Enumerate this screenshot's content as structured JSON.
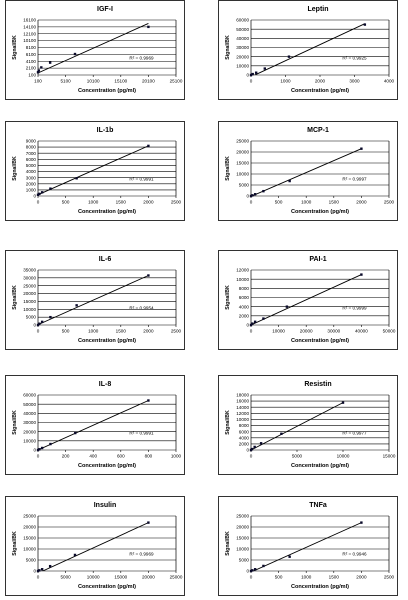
{
  "chart_data": [
    {
      "type": "scatter",
      "title": "IGF-I",
      "xlabel": "Concentration (pg/ml)",
      "ylabel": "Signal/BK",
      "xlim": [
        100,
        25100
      ],
      "ylim": [
        100,
        16100
      ],
      "xticks": [
        "100",
        "5100",
        "10100",
        "15100",
        "20100",
        "25100"
      ],
      "yticks": [
        "100",
        "2100",
        "4100",
        "6100",
        "8100",
        "10100",
        "12100",
        "14100",
        "16100"
      ],
      "points": [
        [
          100,
          900
        ],
        [
          250,
          1400
        ],
        [
          700,
          2300
        ],
        [
          2300,
          3700
        ],
        [
          6800,
          6200
        ],
        [
          20100,
          14100
        ]
      ],
      "fit": [
        [
          100,
          700
        ],
        [
          20100,
          15100
        ]
      ],
      "r2": "R² = 0.9969"
    },
    {
      "type": "scatter",
      "title": "Leptin",
      "xlabel": "Concentration (pg/ml)",
      "ylabel": "Signal/BK",
      "xlim": [
        0,
        4000
      ],
      "ylim": [
        0,
        60000
      ],
      "xticks": [
        "0",
        "1000",
        "2000",
        "3000",
        "4000"
      ],
      "yticks": [
        "0",
        "10000",
        "20000",
        "30000",
        "40000",
        "50000",
        "60000"
      ],
      "points": [
        [
          0,
          0
        ],
        [
          50,
          1000
        ],
        [
          150,
          2500
        ],
        [
          400,
          7000
        ],
        [
          1100,
          20000
        ],
        [
          3300,
          55000
        ]
      ],
      "fit": [
        [
          0,
          -2000
        ],
        [
          3300,
          56000
        ]
      ],
      "r2": "R² = 0.9925"
    },
    {
      "type": "scatter",
      "title": "IL-1b",
      "xlabel": "Concentration (pg/ml)",
      "ylabel": "Signal/BK",
      "xlim": [
        0,
        2500
      ],
      "ylim": [
        0,
        9000
      ],
      "xticks": [
        "0",
        "500",
        "1000",
        "1500",
        "2000",
        "2500"
      ],
      "yticks": [
        "0",
        "1000",
        "2000",
        "3000",
        "4000",
        "5000",
        "6000",
        "7000",
        "8000",
        "9000"
      ],
      "points": [
        [
          0,
          200
        ],
        [
          25,
          350
        ],
        [
          75,
          600
        ],
        [
          225,
          1200
        ],
        [
          700,
          2900
        ],
        [
          2000,
          8200
        ]
      ],
      "fit": [
        [
          0,
          200
        ],
        [
          2000,
          8200
        ]
      ],
      "r2": "R² = 0.9991"
    },
    {
      "type": "scatter",
      "title": "MCP-1",
      "xlabel": "Concentration (pg/ml)",
      "ylabel": "Signal/BK",
      "xlim": [
        0,
        2500
      ],
      "ylim": [
        0,
        25000
      ],
      "xticks": [
        "0",
        "500",
        "1000",
        "1500",
        "2000",
        "2500"
      ],
      "yticks": [
        "0",
        "5000",
        "10000",
        "15000",
        "20000",
        "25000"
      ],
      "points": [
        [
          0,
          0
        ],
        [
          25,
          300
        ],
        [
          75,
          800
        ],
        [
          225,
          2200
        ],
        [
          700,
          6800
        ],
        [
          2000,
          21500
        ]
      ],
      "fit": [
        [
          0,
          -200
        ],
        [
          2000,
          21500
        ]
      ],
      "r2": "R² = 0.9997"
    },
    {
      "type": "scatter",
      "title": "IL-6",
      "xlabel": "Concentration (pg/ml)",
      "ylabel": "Signal/BK",
      "xlim": [
        0,
        2500
      ],
      "ylim": [
        0,
        35000
      ],
      "xticks": [
        "0",
        "500",
        "1000",
        "1500",
        "2000",
        "2500"
      ],
      "yticks": [
        "0",
        "5000",
        "10000",
        "15000",
        "20000",
        "25000",
        "30000",
        "35000"
      ],
      "points": [
        [
          0,
          0
        ],
        [
          25,
          800
        ],
        [
          75,
          2000
        ],
        [
          225,
          5000
        ],
        [
          700,
          12500
        ],
        [
          2000,
          31500
        ]
      ],
      "fit": [
        [
          0,
          200
        ],
        [
          2000,
          31500
        ]
      ],
      "r2": "R² = 0.9954"
    },
    {
      "type": "scatter",
      "title": "PAI-1",
      "xlabel": "Concentration (pg/ml)",
      "ylabel": "Signal/BK",
      "xlim": [
        0,
        50000
      ],
      "ylim": [
        0,
        12000
      ],
      "xticks": [
        "0",
        "10000",
        "20000",
        "30000",
        "40000",
        "50000"
      ],
      "yticks": [
        "0",
        "2000",
        "4000",
        "6000",
        "8000",
        "10000",
        "12000"
      ],
      "points": [
        [
          0,
          0
        ],
        [
          500,
          300
        ],
        [
          1500,
          700
        ],
        [
          4500,
          1400
        ],
        [
          13000,
          4000
        ],
        [
          40000,
          11000
        ]
      ],
      "fit": [
        [
          0,
          0
        ],
        [
          40000,
          11000
        ]
      ],
      "r2": "R² = 0.9999"
    },
    {
      "type": "scatter",
      "title": "IL-8",
      "xlabel": "Concentration (pg/ml)",
      "ylabel": "Signal/BK",
      "xlim": [
        0,
        1000
      ],
      "ylim": [
        0,
        60000
      ],
      "xticks": [
        "0",
        "200",
        "400",
        "600",
        "800",
        "1000"
      ],
      "yticks": [
        "0",
        "10000",
        "20000",
        "30000",
        "40000",
        "50000",
        "60000"
      ],
      "points": [
        [
          0,
          0
        ],
        [
          10,
          800
        ],
        [
          30,
          2200
        ],
        [
          90,
          6500
        ],
        [
          270,
          18500
        ],
        [
          800,
          54000
        ]
      ],
      "fit": [
        [
          0,
          0
        ],
        [
          800,
          54000
        ]
      ],
      "r2": "R² = 0.9991"
    },
    {
      "type": "scatter",
      "title": "Resistin",
      "xlabel": "Concentration (pg/ml)",
      "ylabel": "Signal/BK",
      "xlim": [
        0,
        15000
      ],
      "ylim": [
        0,
        18000
      ],
      "xticks": [
        "0",
        "5000",
        "10000",
        "15000"
      ],
      "yticks": [
        "0",
        "2000",
        "4000",
        "6000",
        "8000",
        "10000",
        "12000",
        "14000",
        "16000",
        "18000"
      ],
      "points": [
        [
          0,
          0
        ],
        [
          100,
          300
        ],
        [
          400,
          1000
        ],
        [
          1100,
          2200
        ],
        [
          3300,
          5300
        ],
        [
          10000,
          15500
        ]
      ],
      "fit": [
        [
          0,
          0
        ],
        [
          10000,
          15500
        ]
      ],
      "r2": "R² = 0.9977"
    },
    {
      "type": "scatter",
      "title": "Insulin",
      "xlabel": "Concentration (pg/ml)",
      "ylabel": "Signal/BK",
      "xlim": [
        0,
        25000
      ],
      "ylim": [
        0,
        25000
      ],
      "xticks": [
        "0",
        "5000",
        "10000",
        "15000",
        "20000",
        "25000"
      ],
      "yticks": [
        "0",
        "5000",
        "10000",
        "15000",
        "20000",
        "25000"
      ],
      "points": [
        [
          0,
          0
        ],
        [
          250,
          300
        ],
        [
          750,
          800
        ],
        [
          2200,
          2200
        ],
        [
          6700,
          7300
        ],
        [
          20000,
          22000
        ]
      ],
      "fit": [
        [
          0,
          -1000
        ],
        [
          20000,
          22000
        ]
      ],
      "r2": "R² = 0.9969"
    },
    {
      "type": "scatter",
      "title": "TNFa",
      "xlabel": "Concentration (pg/ml)",
      "ylabel": "Signal/BK",
      "xlim": [
        0,
        2500
      ],
      "ylim": [
        0,
        25000
      ],
      "xticks": [
        "0",
        "500",
        "1000",
        "1500",
        "2000",
        "2500"
      ],
      "yticks": [
        "0",
        "5000",
        "10000",
        "15000",
        "20000",
        "25000"
      ],
      "points": [
        [
          0,
          0
        ],
        [
          25,
          300
        ],
        [
          75,
          800
        ],
        [
          225,
          2300
        ],
        [
          700,
          6500
        ],
        [
          2000,
          22000
        ]
      ],
      "fit": [
        [
          0,
          -500
        ],
        [
          2000,
          22000
        ]
      ],
      "r2": "R² = 0.9946"
    }
  ]
}
